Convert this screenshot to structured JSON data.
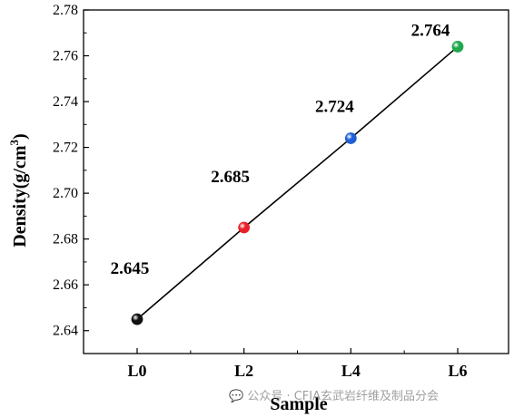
{
  "chart_data": {
    "type": "scatter",
    "title": "",
    "xlabel": "Sample",
    "ylabel_prefix": "Density(g/cm",
    "ylabel_sup": "3",
    "ylabel_suffix": ")",
    "categories": [
      "L0",
      "L2",
      "L4",
      "L6"
    ],
    "values": [
      2.645,
      2.685,
      2.724,
      2.764
    ],
    "data_labels": [
      "2.645",
      "2.685",
      "2.724",
      "2.764"
    ],
    "point_colors": [
      "#111111",
      "#e8202a",
      "#1f5fd6",
      "#1fa84c"
    ],
    "line_color": "#000000",
    "ylim": [
      2.63,
      2.78
    ],
    "yticks": [
      "2.64",
      "2.66",
      "2.68",
      "2.70",
      "2.72",
      "2.74",
      "2.76",
      "2.78"
    ],
    "grid": false,
    "legend": "none"
  },
  "watermark": {
    "text": "公众号 · CFIA玄武岩纤维及制品分会"
  }
}
